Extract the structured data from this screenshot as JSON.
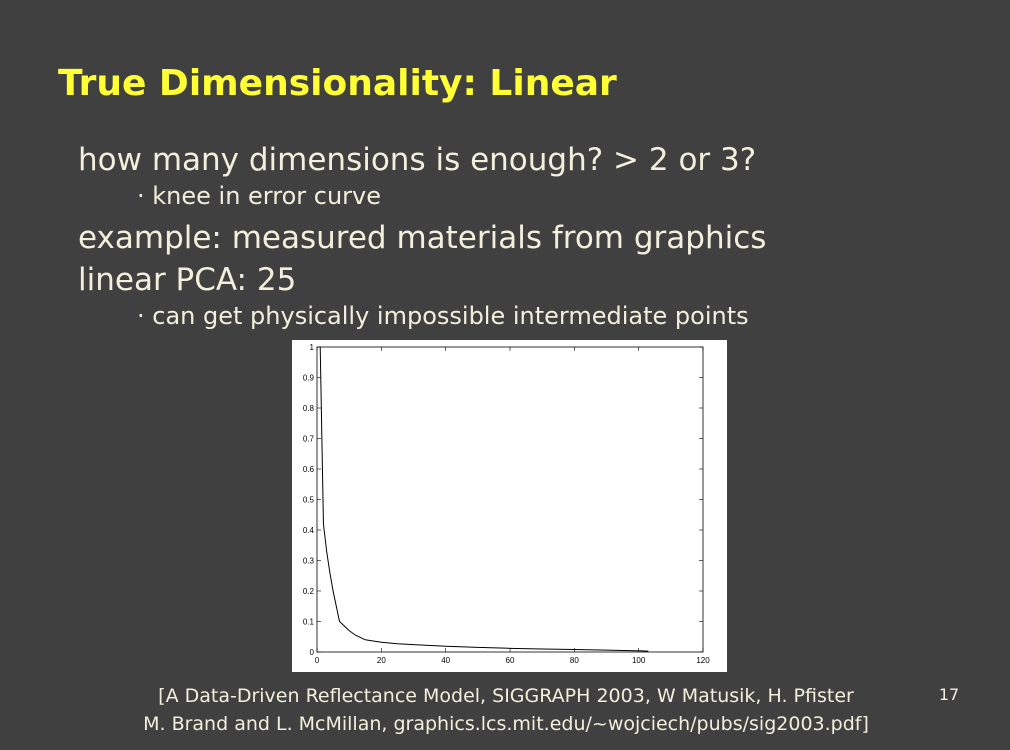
{
  "slide": {
    "title": "True Dimensionality: Linear",
    "points": [
      {
        "text": "how many dimensions is enough? > 2 or 3?",
        "sub": [
          "· knee in error curve"
        ]
      },
      {
        "text": "example: measured materials from graphics",
        "sub": []
      },
      {
        "text": "linear PCA: 25",
        "sub": [
          "· can get physically impossible intermediate points"
        ]
      }
    ],
    "citation": [
      "[A Data-Driven Reflectance Model, SIGGRAPH 2003, W Matusik, H. Pfister",
      "M. Brand and L. McMillan, graphics.lcs.mit.edu/~wojciech/pubs/sig2003.pdf]"
    ],
    "page_number": "17"
  },
  "chart_data": {
    "type": "line",
    "x": [
      1,
      2,
      3,
      4,
      5,
      6,
      7,
      8,
      10,
      12,
      15,
      20,
      25,
      30,
      40,
      50,
      60,
      70,
      80,
      90,
      100,
      103
    ],
    "values": [
      1,
      0.42,
      0.33,
      0.26,
      0.2,
      0.15,
      0.1,
      0.09,
      0.07,
      0.055,
      0.04,
      0.032,
      0.027,
      0.024,
      0.019,
      0.015,
      0.012,
      0.01,
      0.008,
      0.006,
      0.004,
      0.003
    ],
    "color": "#000000",
    "xlim": [
      0,
      120
    ],
    "ylim": [
      0,
      1
    ],
    "xticks": [
      0,
      20,
      40,
      60,
      80,
      100,
      120
    ],
    "yticks": [
      0,
      0.1,
      0.2,
      0.3,
      0.4,
      0.5,
      0.6,
      0.7,
      0.8,
      0.9,
      1
    ]
  }
}
